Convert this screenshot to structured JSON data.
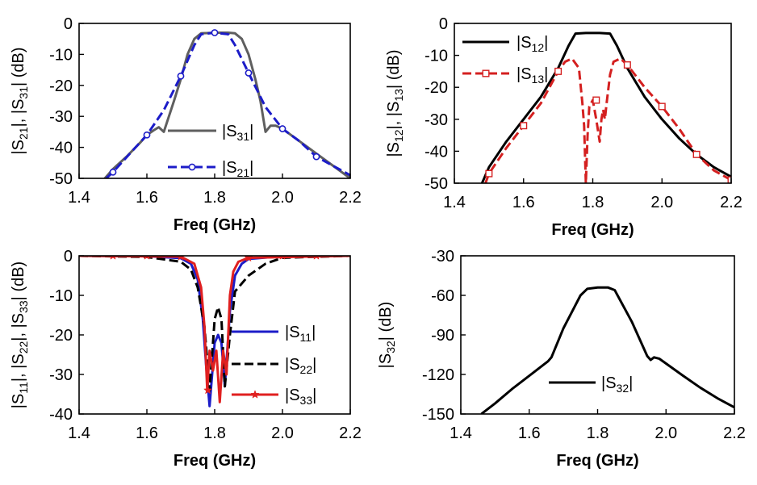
{
  "chart_data": [
    {
      "id": "p1",
      "type": "line",
      "xlabel": "Freq (GHz)",
      "ylabel_parts": [
        [
          "|S",
          ""
        ],
        [
          "21",
          "sub"
        ],
        [
          "|, |S",
          ""
        ],
        [
          "31",
          "sub"
        ],
        [
          "| (dB)",
          ""
        ]
      ],
      "xlim": [
        1.4,
        2.2
      ],
      "ylim": [
        -50,
        0
      ],
      "xticks": [
        1.4,
        1.6,
        1.8,
        2.0,
        2.2
      ],
      "xtick_labels": [
        "1.4",
        "1.6",
        "1.8",
        "2.0",
        "2.2"
      ],
      "yticks": [
        0,
        -10,
        -20,
        -30,
        -40,
        -50
      ],
      "ytick_labels": [
        "0",
        "-10",
        "-20",
        "-30",
        "-40",
        "-50"
      ],
      "series": [
        {
          "name": "|S31|",
          "label_main": "|S",
          "label_sub": "31",
          "label_end": "|",
          "color": "#5f5f5f",
          "dash": "solid",
          "marker": "none",
          "x": [
            1.46,
            1.5,
            1.54,
            1.58,
            1.6,
            1.62,
            1.635,
            1.65,
            1.665,
            1.68,
            1.7,
            1.72,
            1.74,
            1.76,
            1.8,
            1.84,
            1.86,
            1.88,
            1.9,
            1.92,
            1.935,
            1.95,
            1.965,
            1.98,
            2.0,
            2.05,
            2.1,
            2.15,
            2.2
          ],
          "y": [
            -52,
            -47,
            -43,
            -38.5,
            -36,
            -34.5,
            -33.5,
            -35,
            -30,
            -25,
            -18,
            -10,
            -5,
            -3.2,
            -3,
            -3,
            -3.2,
            -5,
            -10,
            -18,
            -25,
            -35,
            -33,
            -33,
            -34,
            -38,
            -42,
            -46,
            -50
          ]
        },
        {
          "name": "|S21|",
          "label_main": "|S",
          "label_sub": "21",
          "label_end": "|",
          "color": "#1c1cc8",
          "dash": "dash",
          "marker": "circle",
          "x": [
            1.48,
            1.5,
            1.55,
            1.6,
            1.65,
            1.7,
            1.74,
            1.76,
            1.8,
            1.84,
            1.86,
            1.9,
            1.95,
            2.0,
            2.05,
            2.1,
            2.15,
            2.2
          ],
          "y": [
            -50,
            -48,
            -42,
            -36,
            -28,
            -17,
            -7,
            -3.5,
            -3,
            -3.5,
            -7,
            -16,
            -27,
            -34,
            -38,
            -43,
            -46,
            -49
          ],
          "marker_x": [
            1.5,
            1.6,
            1.7,
            1.8,
            1.9,
            2.0,
            2.1
          ],
          "marker_y": [
            -48,
            -36,
            -17,
            -3,
            -16,
            -34,
            -43
          ]
        }
      ]
    },
    {
      "id": "p2",
      "type": "line",
      "xlabel": "Freq (GHz)",
      "ylabel_parts": [
        [
          "|S",
          ""
        ],
        [
          "12",
          "sub"
        ],
        [
          "|, |S",
          ""
        ],
        [
          "13",
          "sub"
        ],
        [
          "| (dB)",
          ""
        ]
      ],
      "xlim": [
        1.4,
        2.2
      ],
      "ylim": [
        -50,
        0
      ],
      "xticks": [
        1.4,
        1.6,
        1.8,
        2.0,
        2.2
      ],
      "xtick_labels": [
        "1.4",
        "1.6",
        "1.8",
        "2.0",
        "2.2"
      ],
      "yticks": [
        0,
        -10,
        -20,
        -30,
        -40,
        -50
      ],
      "ytick_labels": [
        "0",
        "-10",
        "-20",
        "-30",
        "-40",
        "-50"
      ],
      "series": [
        {
          "name": "|S12|",
          "label_main": "|S",
          "label_sub": "12",
          "label_end": "|",
          "color": "#000000",
          "dash": "solid",
          "marker": "none",
          "x": [
            1.48,
            1.5,
            1.55,
            1.6,
            1.65,
            1.7,
            1.73,
            1.75,
            1.78,
            1.8,
            1.82,
            1.85,
            1.87,
            1.9,
            1.95,
            2.0,
            2.05,
            2.1,
            2.15,
            2.2
          ],
          "y": [
            -50,
            -45,
            -37,
            -30,
            -23,
            -14,
            -7,
            -3.2,
            -3,
            -3,
            -3,
            -3.2,
            -7,
            -14,
            -23,
            -30,
            -36,
            -41,
            -45,
            -48
          ]
        },
        {
          "name": "|S13|",
          "label_main": "|S",
          "label_sub": "13",
          "label_end": "|",
          "color": "#d42020",
          "dash": "dash",
          "marker": "square",
          "x": [
            1.49,
            1.5,
            1.55,
            1.6,
            1.65,
            1.7,
            1.72,
            1.74,
            1.76,
            1.77,
            1.775,
            1.78,
            1.785,
            1.79,
            1.8,
            1.81,
            1.82,
            1.825,
            1.83,
            1.835,
            1.84,
            1.85,
            1.86,
            1.88,
            1.9,
            1.95,
            2.0,
            2.05,
            2.1,
            2.15,
            2.2
          ],
          "y": [
            -50,
            -47,
            -39,
            -32,
            -25,
            -15,
            -12,
            -11,
            -14,
            -25,
            -32,
            -50,
            -35,
            -26,
            -24,
            -30,
            -37,
            -30,
            -27,
            -30,
            -25,
            -16,
            -12,
            -11,
            -13,
            -20,
            -26,
            -33,
            -41,
            -46,
            -49
          ],
          "marker_x": [
            1.5,
            1.6,
            1.7,
            1.81,
            1.9,
            2.0,
            2.1,
            2.2
          ],
          "marker_y": [
            -47,
            -32,
            -15,
            -24,
            -13,
            -26,
            -41,
            -49
          ]
        }
      ]
    },
    {
      "id": "p3",
      "type": "line",
      "xlabel": "Freq (GHz)",
      "ylabel_parts": [
        [
          "|S",
          ""
        ],
        [
          "11",
          "sub"
        ],
        [
          "|, |S",
          ""
        ],
        [
          "22",
          "sub"
        ],
        [
          "|, |S",
          ""
        ],
        [
          "33",
          "sub"
        ],
        [
          "| (dB)",
          ""
        ]
      ],
      "xlim": [
        1.4,
        2.2
      ],
      "ylim": [
        -40,
        0
      ],
      "xticks": [
        1.4,
        1.6,
        1.8,
        2.0,
        2.2
      ],
      "xtick_labels": [
        "1.4",
        "1.6",
        "1.8",
        "2.0",
        "2.2"
      ],
      "yticks": [
        0,
        -10,
        -20,
        -30,
        -40
      ],
      "ytick_labels": [
        "0",
        "-10",
        "-20",
        "-30",
        "-40"
      ],
      "series": [
        {
          "name": "|S11|",
          "label_main": "|S",
          "label_sub": "11",
          "label_end": "|",
          "color": "#1c1cc8",
          "dash": "solid",
          "marker": "none",
          "x": [
            1.4,
            1.6,
            1.7,
            1.73,
            1.75,
            1.765,
            1.775,
            1.785,
            1.8,
            1.81,
            1.82,
            1.83,
            1.845,
            1.86,
            1.88,
            1.9,
            2.0,
            2.2
          ],
          "y": [
            0,
            -0.1,
            -0.6,
            -2,
            -6,
            -16,
            -28,
            -38,
            -22,
            -20,
            -22,
            -33,
            -14,
            -5,
            -2,
            -0.8,
            -0.1,
            0
          ]
        },
        {
          "name": "|S22|",
          "label_main": "|S",
          "label_sub": "22",
          "label_end": "|",
          "color": "#000000",
          "dash": "dash",
          "marker": "none",
          "x": [
            1.4,
            1.6,
            1.7,
            1.73,
            1.75,
            1.77,
            1.785,
            1.8,
            1.81,
            1.82,
            1.83,
            1.845,
            1.86,
            1.9,
            1.95,
            2.0,
            2.2
          ],
          "y": [
            0,
            -0.3,
            -1.5,
            -3.5,
            -8,
            -18,
            -34,
            -16,
            -13,
            -16,
            -33,
            -20,
            -9,
            -5,
            -2,
            -0.5,
            0
          ]
        },
        {
          "name": "|S33|",
          "label_main": "|S",
          "label_sub": "33",
          "label_end": "|",
          "color": "#e02020",
          "dash": "solid",
          "marker": "star",
          "x": [
            1.4,
            1.7,
            1.74,
            1.76,
            1.77,
            1.778,
            1.785,
            1.795,
            1.805,
            1.815,
            1.825,
            1.835,
            1.84,
            1.845,
            1.855,
            1.87,
            1.9,
            2.2
          ],
          "y": [
            0,
            -0.2,
            -2,
            -8,
            -18,
            -34,
            -24,
            -29,
            -24,
            -37,
            -24,
            -30,
            -20,
            -10,
            -4,
            -1.5,
            -0.5,
            0
          ],
          "marker_x": [
            1.5,
            1.6,
            1.7,
            1.78,
            1.9,
            2.0,
            2.1
          ],
          "marker_y": [
            0,
            0,
            -0.2,
            -34,
            -0.5,
            0,
            0
          ]
        }
      ]
    },
    {
      "id": "p4",
      "type": "line",
      "xlabel": "Freq (GHz)",
      "ylabel_parts": [
        [
          "|S",
          ""
        ],
        [
          "32",
          "sub"
        ],
        [
          "| (dB)",
          ""
        ]
      ],
      "xlim": [
        1.4,
        2.2
      ],
      "ylim": [
        -150,
        -30
      ],
      "xticks": [
        1.4,
        1.6,
        1.8,
        2.0,
        2.2
      ],
      "xtick_labels": [
        "1.4",
        "1.6",
        "1.8",
        "2.0",
        "2.2"
      ],
      "yticks": [
        -30,
        -60,
        -90,
        -120,
        -150
      ],
      "ytick_labels": [
        "-30",
        "-60",
        "-90",
        "-120",
        "-150"
      ],
      "series": [
        {
          "name": "|S32|",
          "label_main": "|S",
          "label_sub": "32",
          "label_end": "|",
          "color": "#000000",
          "dash": "solid",
          "marker": "none",
          "x": [
            1.46,
            1.5,
            1.55,
            1.6,
            1.645,
            1.655,
            1.665,
            1.7,
            1.75,
            1.77,
            1.8,
            1.83,
            1.85,
            1.9,
            1.945,
            1.955,
            1.965,
            1.98,
            2.05,
            2.1,
            2.15,
            2.2
          ],
          "y": [
            -150,
            -142,
            -131,
            -121,
            -112,
            -110,
            -107,
            -85,
            -60,
            -55,
            -54,
            -54,
            -56,
            -80,
            -106,
            -109,
            -107,
            -108,
            -121,
            -130,
            -138,
            -145
          ]
        }
      ]
    }
  ]
}
